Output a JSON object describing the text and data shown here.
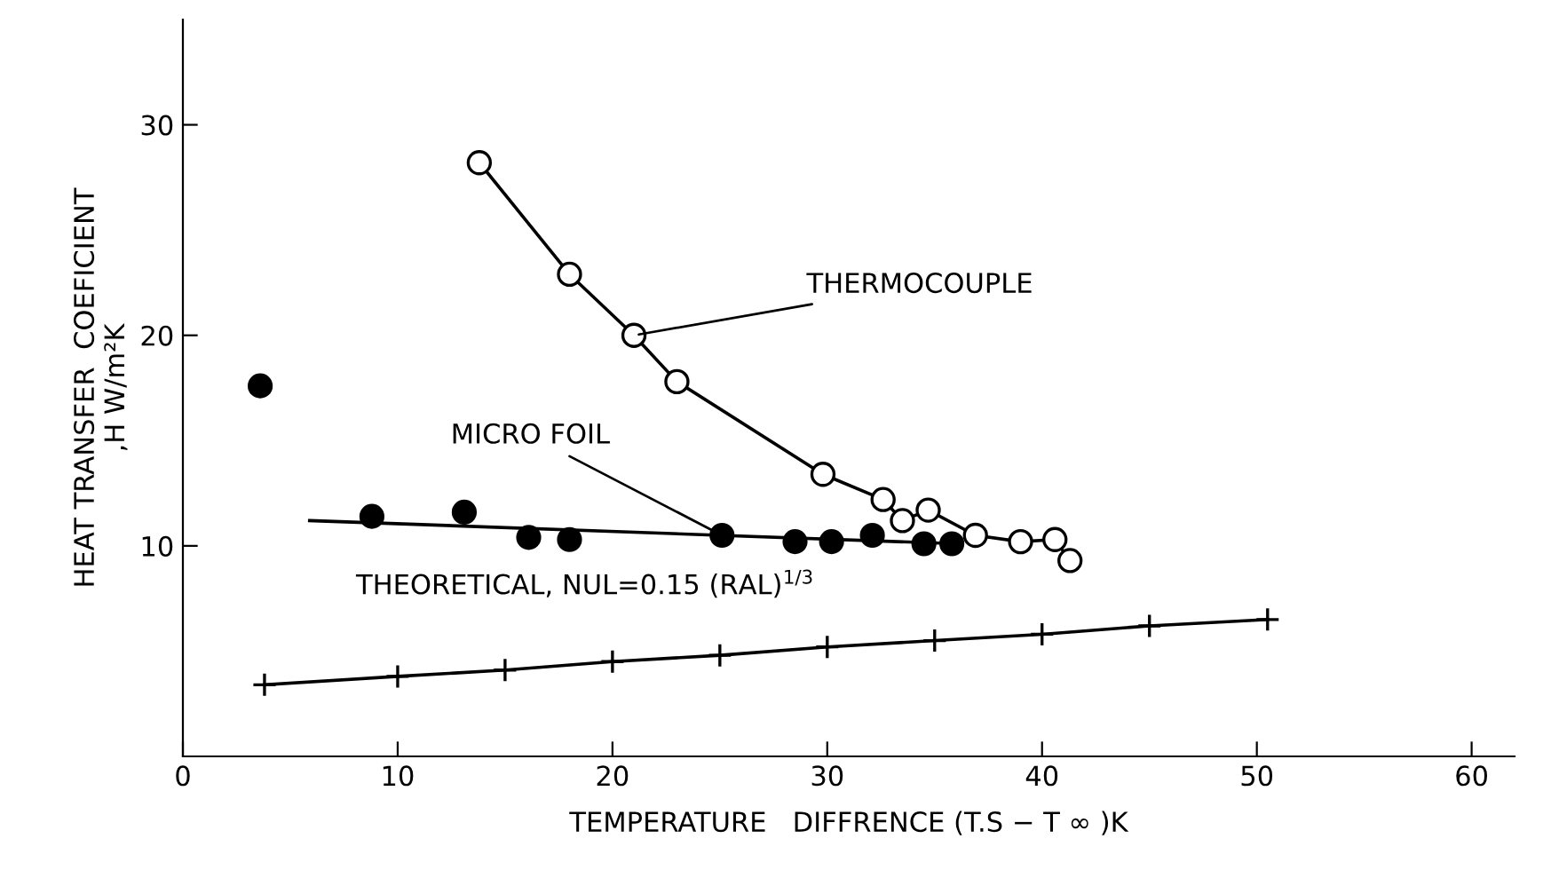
{
  "chart_data": {
    "type": "scatter",
    "xlabel": "TEMPERATURE   DIFFRENCE (T.S − T ∞ )K",
    "ylabel": "HEAT TRANSFER  COEFICIENT\n,H W/m²K",
    "xlim": [
      0,
      62
    ],
    "ylim": [
      0,
      35
    ],
    "xticks": [
      0,
      10,
      20,
      30,
      40,
      50,
      60
    ],
    "yticks": [
      10,
      20,
      30
    ],
    "grid": false,
    "legend": false,
    "series": [
      {
        "type": "line",
        "marker": "circle",
        "color": "#000000",
        "x": [
          13.8,
          18.0,
          21.0,
          23.0,
          29.8,
          32.6,
          33.5,
          34.7,
          36.9,
          39.0,
          40.6,
          41.3
        ],
        "values": [
          28.2,
          22.9,
          20.0,
          17.8,
          13.4,
          12.2,
          11.2,
          11.7,
          10.5,
          10.2,
          10.3,
          9.3
        ]
      },
      {
        "marker": "circle",
        "color": "#000000",
        "x": [
          3.6,
          8.8,
          13.1,
          16.1,
          18.0,
          25.1,
          28.5,
          30.2,
          32.1,
          34.5,
          35.8
        ],
        "values": [
          17.6,
          11.4,
          11.6,
          10.4,
          10.3,
          10.5,
          10.2,
          10.2,
          10.5,
          10.1,
          10.1
        ]
      },
      {
        "type": "line",
        "marker": "none",
        "color": "#000000",
        "x": [
          5.9,
          36.0
        ],
        "values": [
          11.2,
          10.1
        ]
      },
      {
        "type": "line",
        "marker": "cross",
        "color": "#000000",
        "x": [
          3.8,
          10,
          15,
          20,
          25,
          30,
          35,
          40,
          45,
          50.5
        ],
        "values": [
          3.4,
          3.8,
          4.1,
          4.5,
          4.8,
          5.2,
          5.5,
          5.8,
          6.2,
          6.5
        ]
      }
    ],
    "annotations": [
      {
        "text": "THERMOCOUPLE",
        "x": 21.0,
        "y": 20.0
      },
      {
        "text": "MICRO FOIL",
        "x": 25.1,
        "y": 10.5
      },
      "THEORETICAL, NUL=0.15 (RAL)$^{1/3}$"
    ]
  }
}
